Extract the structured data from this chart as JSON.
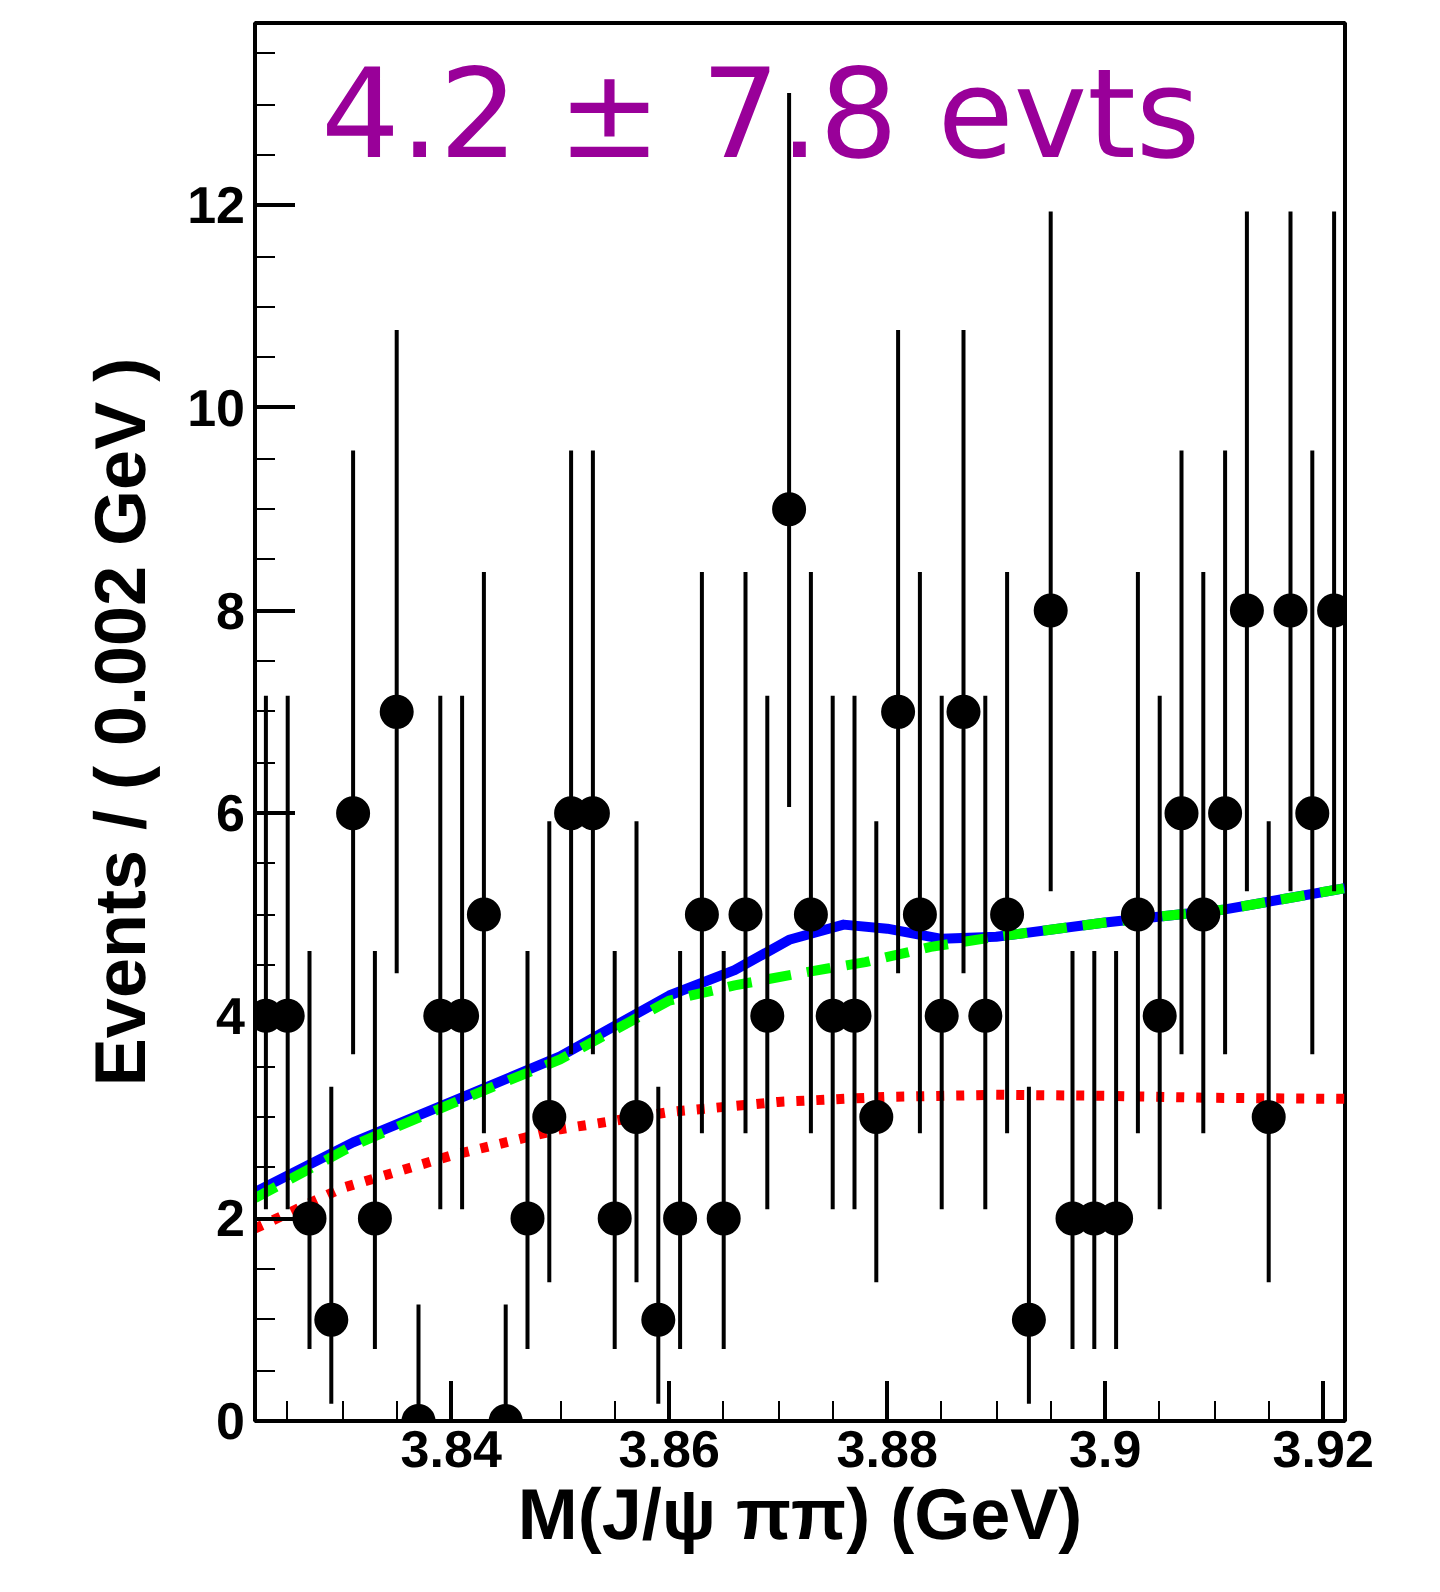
{
  "chart_data": {
    "type": "scatter",
    "xlabel": "M(J/ψ ππ) (GeV)",
    "ylabel": "Events / ( 0.002 GeV )",
    "annotations": [
      "4.2 ± 7.8 evts"
    ],
    "x": [
      3.823,
      3.825,
      3.827,
      3.829,
      3.831,
      3.833,
      3.835,
      3.837,
      3.839,
      3.841,
      3.843,
      3.845,
      3.847,
      3.849,
      3.851,
      3.853,
      3.855,
      3.857,
      3.859,
      3.861,
      3.863,
      3.865,
      3.867,
      3.869,
      3.871,
      3.873,
      3.875,
      3.877,
      3.879,
      3.881,
      3.883,
      3.885,
      3.887,
      3.889,
      3.891,
      3.893,
      3.895,
      3.897,
      3.899,
      3.901,
      3.903,
      3.905,
      3.907,
      3.909,
      3.911,
      3.913,
      3.915,
      3.917,
      3.919,
      3.921
    ],
    "xlim": [
      3.822,
      3.922
    ],
    "xticks": [
      3.84,
      3.86,
      3.88,
      3.9,
      3.92
    ],
    "ylim": [
      0,
      13.8
    ],
    "yticks": [
      0,
      2,
      4,
      6,
      8,
      10,
      12
    ],
    "grid": false,
    "series": [
      {
        "type": "line",
        "color": "#0000ff",
        "line_style": "solid",
        "x": [
          3.822,
          3.831,
          3.84,
          3.85,
          3.86,
          3.866,
          3.871,
          3.876,
          3.88,
          3.885,
          3.89,
          3.9,
          3.911,
          3.922
        ],
        "values": [
          2.26,
          2.75,
          3.15,
          3.6,
          4.2,
          4.45,
          4.75,
          4.9,
          4.86,
          4.76,
          4.78,
          4.92,
          5.05,
          5.26
        ]
      },
      {
        "type": "line",
        "color": "#00ff00",
        "line_style": "dashed",
        "x": [
          3.822,
          3.831,
          3.84,
          3.85,
          3.86,
          3.866,
          3.872,
          3.878,
          3.884,
          3.89,
          3.9,
          3.911,
          3.922
        ],
        "values": [
          2.2,
          2.72,
          3.13,
          3.57,
          4.15,
          4.3,
          4.42,
          4.53,
          4.68,
          4.78,
          4.92,
          5.05,
          5.26
        ]
      },
      {
        "type": "line",
        "color": "#ff0000",
        "line_style": "dotted",
        "x": [
          3.822,
          3.83,
          3.84,
          3.85,
          3.86,
          3.87,
          3.88,
          3.89,
          3.9,
          3.91,
          3.922
        ],
        "values": [
          1.9,
          2.3,
          2.62,
          2.88,
          3.05,
          3.15,
          3.2,
          3.22,
          3.21,
          3.19,
          3.18
        ]
      },
      {
        "color": "#000000",
        "marker": "circle",
        "values": [
          4,
          4,
          2,
          1,
          6,
          2,
          7,
          0,
          4,
          4,
          5,
          0,
          2,
          3,
          6,
          6,
          2,
          3,
          1,
          2,
          5,
          2,
          5,
          4,
          9,
          5,
          4,
          4,
          3,
          7,
          5,
          4,
          7,
          4,
          5,
          1,
          8,
          2,
          2,
          2,
          5,
          4,
          6,
          5,
          6,
          8,
          3,
          8,
          6,
          8
        ],
        "errors": [
          [
            2.09,
            7.16
          ],
          [
            2.09,
            7.16
          ],
          [
            0.71,
            4.64
          ],
          [
            0.17,
            3.3
          ],
          [
            3.62,
            9.58
          ],
          [
            0.71,
            4.64
          ],
          [
            4.42,
            10.77
          ],
          [
            0,
            1.15
          ],
          [
            2.09,
            7.16
          ],
          [
            2.09,
            7.16
          ],
          [
            2.84,
            8.38
          ],
          [
            0,
            1.15
          ],
          [
            0.71,
            4.64
          ],
          [
            1.37,
            5.92
          ],
          [
            3.62,
            9.58
          ],
          [
            3.62,
            9.58
          ],
          [
            0.71,
            4.64
          ],
          [
            1.37,
            5.92
          ],
          [
            0.17,
            3.3
          ],
          [
            0.71,
            4.64
          ],
          [
            2.84,
            8.38
          ],
          [
            0.71,
            4.64
          ],
          [
            2.84,
            8.38
          ],
          [
            2.09,
            7.16
          ],
          [
            6.06,
            13.11
          ],
          [
            2.84,
            8.38
          ],
          [
            2.09,
            7.16
          ],
          [
            2.09,
            7.16
          ],
          [
            1.37,
            5.92
          ],
          [
            4.42,
            10.77
          ],
          [
            2.84,
            8.38
          ],
          [
            2.09,
            7.16
          ],
          [
            4.42,
            10.77
          ],
          [
            2.09,
            7.16
          ],
          [
            2.84,
            8.38
          ],
          [
            0.17,
            3.3
          ],
          [
            5.23,
            11.94
          ],
          [
            0.71,
            4.64
          ],
          [
            0.71,
            4.64
          ],
          [
            0.71,
            4.64
          ],
          [
            2.84,
            8.38
          ],
          [
            2.09,
            7.16
          ],
          [
            3.62,
            9.58
          ],
          [
            2.84,
            8.38
          ],
          [
            3.62,
            9.58
          ],
          [
            5.23,
            11.94
          ],
          [
            1.37,
            5.92
          ],
          [
            5.23,
            11.94
          ],
          [
            3.62,
            9.58
          ],
          [
            5.23,
            11.94
          ]
        ]
      }
    ]
  }
}
